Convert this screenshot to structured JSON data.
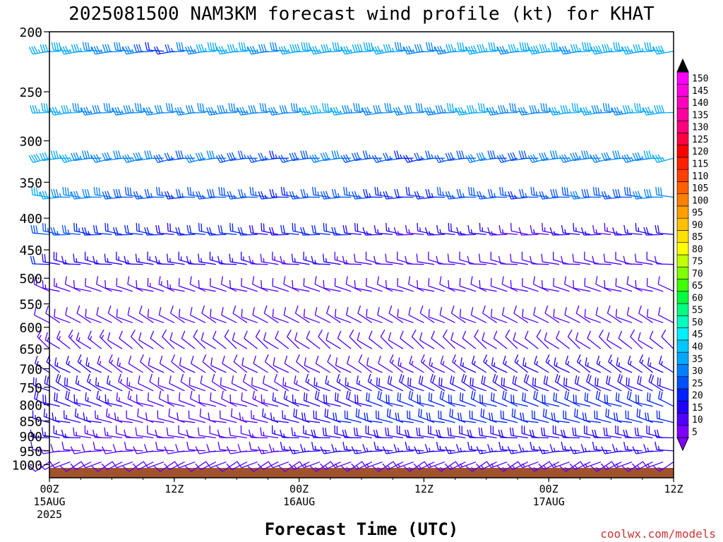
{
  "title": "2025081500 NAM3KM forecast wind profile (kt) for KHAT",
  "xlabel": "Forecast Time (UTC)",
  "watermark": "coolwx.com/models",
  "chart_data": {
    "type": "wind-barb-profile",
    "title": "2025081500 NAM3KM forecast wind profile (kt) for KHAT",
    "xlabel": "Forecast Time (UTC)",
    "ylabel": "",
    "y_axis": "pressure (hPa), log-scale, inverted",
    "ylim": [
      1050,
      200
    ],
    "y_ticks": [
      200,
      250,
      300,
      350,
      400,
      450,
      500,
      550,
      600,
      650,
      700,
      750,
      800,
      850,
      900,
      950,
      1000
    ],
    "xlim_hours": [
      0,
      60
    ],
    "x_ticks": [
      {
        "hour": 0,
        "labels": [
          "00Z",
          "15AUG",
          "2025"
        ]
      },
      {
        "hour": 12,
        "labels": [
          "12Z"
        ]
      },
      {
        "hour": 24,
        "labels": [
          "00Z",
          "16AUG"
        ]
      },
      {
        "hour": 36,
        "labels": [
          "12Z"
        ]
      },
      {
        "hour": 48,
        "labels": [
          "00Z",
          "17AUG"
        ]
      },
      {
        "hour": 60,
        "labels": [
          "12Z"
        ]
      }
    ],
    "time_step_hours": 1,
    "grid": false,
    "colorbar": {
      "placement": "right",
      "units": "kt",
      "levels": [
        5,
        10,
        15,
        20,
        25,
        30,
        35,
        40,
        45,
        50,
        55,
        60,
        65,
        70,
        75,
        80,
        85,
        90,
        95,
        100,
        105,
        110,
        115,
        120,
        125,
        130,
        135,
        140,
        145,
        150
      ],
      "colors": [
        "#8000ff",
        "#5000ff",
        "#2000ff",
        "#0020ff",
        "#0050ff",
        "#0080ff",
        "#00a8ff",
        "#00c8ff",
        "#00f0ff",
        "#00ffc0",
        "#00ff80",
        "#00ff40",
        "#40ff00",
        "#80ff00",
        "#c0ff00",
        "#ffff00",
        "#ffe000",
        "#ffc000",
        "#ffa000",
        "#ff8000",
        "#ff6000",
        "#ff4000",
        "#ff2000",
        "#ff0000",
        "#ff0040",
        "#ff0080",
        "#ff00a0",
        "#ff00c0",
        "#ff00e0",
        "#ff00ff"
      ]
    },
    "terrain_color": "#a0522d",
    "levels": [
      {
        "p": 215,
        "dir": 270,
        "spd": [
          36,
          36,
          38,
          36,
          35,
          34,
          33,
          32,
          33,
          34,
          28,
          22,
          20,
          26,
          30,
          34,
          36,
          38,
          37,
          36,
          35,
          34,
          32,
          30,
          36,
          38,
          38,
          37,
          36,
          35,
          36,
          38,
          38,
          36,
          35,
          34,
          33,
          32,
          33,
          34,
          36,
          37,
          38,
          36,
          35,
          34,
          36,
          38,
          38,
          36,
          35,
          34,
          36,
          38,
          38,
          37,
          36,
          35,
          36,
          37,
          38
        ]
      },
      {
        "p": 270,
        "dir": 265,
        "spd": [
          36,
          36,
          36,
          35,
          34,
          33,
          32,
          33,
          34,
          34,
          33,
          32,
          31,
          30,
          30,
          31,
          32,
          33,
          34,
          34,
          33,
          32,
          31,
          30,
          32,
          34,
          35,
          36,
          36,
          35,
          34,
          33,
          32,
          31,
          30,
          30,
          31,
          32,
          33,
          34,
          35,
          36,
          36,
          35,
          34,
          33,
          32,
          32,
          33,
          34,
          35,
          36,
          36,
          35,
          34,
          33,
          34,
          35,
          36,
          37,
          38
        ]
      },
      {
        "p": 320,
        "dir": 260,
        "spd": [
          38,
          37,
          36,
          35,
          34,
          33,
          32,
          31,
          32,
          33,
          32,
          30,
          28,
          26,
          28,
          30,
          30,
          30,
          29,
          28,
          27,
          26,
          25,
          24,
          26,
          28,
          29,
          30,
          31,
          30,
          29,
          28,
          27,
          26,
          25,
          24,
          24,
          25,
          26,
          27,
          28,
          29,
          30,
          30,
          29,
          28,
          28,
          29,
          30,
          31,
          32,
          33,
          34,
          33,
          32,
          31,
          32,
          33,
          34,
          35,
          36
        ]
      },
      {
        "p": 370,
        "dir": 270,
        "spd": [
          36,
          35,
          34,
          33,
          32,
          31,
          30,
          29,
          28,
          28,
          27,
          26,
          25,
          24,
          25,
          26,
          27,
          28,
          28,
          27,
          26,
          25,
          24,
          23,
          24,
          25,
          26,
          27,
          28,
          27,
          26,
          25,
          24,
          23,
          22,
          21,
          20,
          22,
          24,
          25,
          26,
          27,
          28,
          27,
          26,
          25,
          24,
          25,
          26,
          27,
          28,
          29,
          30,
          29,
          28,
          27,
          28,
          29,
          30,
          31,
          32
        ]
      },
      {
        "p": 425,
        "dir": 275,
        "spd": [
          28,
          27,
          26,
          25,
          24,
          23,
          22,
          21,
          20,
          20,
          20,
          20,
          19,
          19,
          20,
          21,
          22,
          22,
          21,
          20,
          20,
          19,
          18,
          18,
          20,
          21,
          22,
          22,
          21,
          20,
          19,
          18,
          17,
          16,
          15,
          14,
          14,
          15,
          16,
          17,
          18,
          17,
          16,
          15,
          14,
          13,
          12,
          12,
          13,
          14,
          15,
          16,
          16,
          15,
          14,
          14,
          15,
          16,
          17,
          18,
          18
        ]
      },
      {
        "p": 475,
        "dir": 280,
        "spd": [
          20,
          19,
          18,
          17,
          16,
          16,
          15,
          15,
          15,
          16,
          16,
          17,
          17,
          16,
          15,
          15,
          16,
          17,
          17,
          16,
          15,
          14,
          14,
          13,
          14,
          15,
          16,
          16,
          15,
          14,
          13,
          12,
          12,
          11,
          10,
          10,
          10,
          11,
          12,
          12,
          12,
          11,
          10,
          10,
          10,
          10,
          10,
          10,
          10,
          11,
          12,
          12,
          12,
          11,
          10,
          10,
          11,
          12,
          12,
          12,
          12
        ]
      },
      {
        "p": 525,
        "dir": 290,
        "spd": [
          14,
          13,
          13,
          12,
          12,
          12,
          11,
          11,
          11,
          12,
          12,
          13,
          13,
          13,
          12,
          12,
          12,
          12,
          11,
          11,
          10,
          10,
          10,
          10,
          11,
          12,
          12,
          12,
          11,
          10,
          10,
          10,
          10,
          10,
          10,
          10,
          10,
          10,
          10,
          10,
          10,
          10,
          10,
          10,
          10,
          10,
          10,
          10,
          10,
          10,
          10,
          10,
          10,
          10,
          10,
          10,
          10,
          10,
          10,
          10,
          10
        ]
      },
      {
        "p": 590,
        "dir": 300,
        "spd": [
          12,
          12,
          12,
          11,
          11,
          11,
          11,
          12,
          12,
          12,
          12,
          12,
          11,
          11,
          11,
          10,
          10,
          10,
          10,
          10,
          10,
          10,
          10,
          10,
          10,
          10,
          10,
          10,
          10,
          10,
          10,
          10,
          10,
          10,
          10,
          10,
          10,
          10,
          10,
          10,
          10,
          10,
          10,
          10,
          10,
          10,
          10,
          10,
          10,
          10,
          10,
          10,
          10,
          10,
          10,
          10,
          10,
          10,
          10,
          10,
          10
        ]
      },
      {
        "p": 650,
        "dir": 305,
        "spd": [
          14,
          14,
          14,
          14,
          13,
          13,
          13,
          12,
          12,
          12,
          11,
          11,
          10,
          10,
          10,
          10,
          10,
          10,
          10,
          10,
          10,
          10,
          10,
          10,
          10,
          10,
          10,
          10,
          10,
          10,
          10,
          10,
          10,
          10,
          10,
          10,
          10,
          10,
          10,
          10,
          10,
          10,
          10,
          10,
          10,
          10,
          10,
          10,
          10,
          10,
          10,
          10,
          10,
          10,
          10,
          10,
          10,
          10,
          10,
          10,
          10
        ]
      },
      {
        "p": 710,
        "dir": 300,
        "spd": [
          16,
          16,
          16,
          16,
          15,
          15,
          14,
          14,
          13,
          12,
          11,
          10,
          10,
          10,
          10,
          10,
          10,
          10,
          10,
          10,
          10,
          10,
          10,
          10,
          10,
          10,
          10,
          10,
          10,
          12,
          12,
          12,
          12,
          12,
          13,
          13,
          13,
          13,
          14,
          14,
          14,
          15,
          15,
          15,
          15,
          15,
          15,
          15,
          15,
          15,
          15,
          15,
          15,
          15,
          15,
          15,
          15,
          15,
          15,
          15,
          15
        ]
      },
      {
        "p": 760,
        "dir": 295,
        "spd": [
          18,
          18,
          18,
          18,
          17,
          17,
          16,
          15,
          14,
          13,
          12,
          11,
          10,
          10,
          10,
          10,
          10,
          10,
          10,
          10,
          10,
          11,
          12,
          12,
          13,
          14,
          15,
          16,
          16,
          17,
          17,
          17,
          17,
          18,
          18,
          18,
          18,
          18,
          18,
          18,
          18,
          18,
          18,
          18,
          18,
          18,
          18,
          18,
          18,
          18,
          18,
          18,
          18,
          18,
          18,
          18,
          18,
          18,
          18,
          18,
          18
        ]
      },
      {
        "p": 805,
        "dir": 290,
        "spd": [
          18,
          18,
          18,
          18,
          17,
          17,
          16,
          15,
          14,
          13,
          12,
          11,
          10,
          10,
          10,
          10,
          10,
          10,
          10,
          11,
          12,
          13,
          14,
          15,
          16,
          17,
          18,
          18,
          19,
          19,
          19,
          19,
          20,
          20,
          20,
          20,
          20,
          20,
          20,
          20,
          20,
          20,
          20,
          20,
          20,
          20,
          20,
          20,
          20,
          20,
          20,
          20,
          20,
          20,
          20,
          20,
          20,
          20,
          20,
          20,
          20
        ]
      },
      {
        "p": 855,
        "dir": 285,
        "spd": [
          16,
          16,
          16,
          16,
          15,
          15,
          14,
          14,
          13,
          12,
          11,
          10,
          10,
          10,
          10,
          10,
          10,
          10,
          11,
          12,
          13,
          14,
          15,
          16,
          17,
          18,
          18,
          19,
          19,
          20,
          20,
          20,
          20,
          20,
          20,
          20,
          20,
          20,
          20,
          20,
          20,
          20,
          20,
          20,
          20,
          20,
          20,
          20,
          20,
          20,
          20,
          20,
          20,
          20,
          20,
          20,
          20,
          20,
          20,
          20,
          20
        ]
      },
      {
        "p": 905,
        "dir": 280,
        "spd": [
          15,
          15,
          15,
          15,
          14,
          14,
          13,
          13,
          12,
          11,
          10,
          10,
          10,
          10,
          10,
          10,
          10,
          10,
          10,
          11,
          12,
          13,
          14,
          15,
          16,
          17,
          17,
          18,
          18,
          18,
          18,
          18,
          18,
          18,
          18,
          18,
          18,
          18,
          18,
          18,
          18,
          18,
          18,
          18,
          18,
          18,
          18,
          18,
          18,
          18,
          18,
          18,
          18,
          18,
          18,
          18,
          18,
          18,
          18,
          18,
          18
        ]
      },
      {
        "p": 950,
        "dir": 270,
        "spd": [
          12,
          12,
          12,
          12,
          12,
          12,
          12,
          11,
          11,
          11,
          10,
          10,
          10,
          10,
          10,
          10,
          10,
          10,
          10,
          10,
          11,
          12,
          13,
          14,
          15,
          15,
          16,
          16,
          16,
          16,
          16,
          16,
          16,
          16,
          16,
          16,
          16,
          16,
          16,
          16,
          16,
          16,
          16,
          16,
          16,
          16,
          16,
          16,
          16,
          16,
          16,
          16,
          16,
          16,
          16,
          16,
          16,
          16,
          16,
          16,
          16
        ]
      },
      {
        "p": 990,
        "dir": 240,
        "spd": [
          10,
          10,
          10,
          10,
          10,
          10,
          10,
          10,
          10,
          10,
          10,
          10,
          10,
          10,
          10,
          10,
          10,
          10,
          10,
          10,
          10,
          10,
          10,
          11,
          12,
          13,
          14,
          14,
          14,
          14,
          14,
          14,
          14,
          14,
          14,
          14,
          14,
          14,
          14,
          14,
          14,
          14,
          14,
          14,
          14,
          14,
          14,
          14,
          14,
          14,
          14,
          14,
          14,
          14,
          14,
          14,
          14,
          14,
          14,
          14,
          14
        ]
      }
    ]
  }
}
